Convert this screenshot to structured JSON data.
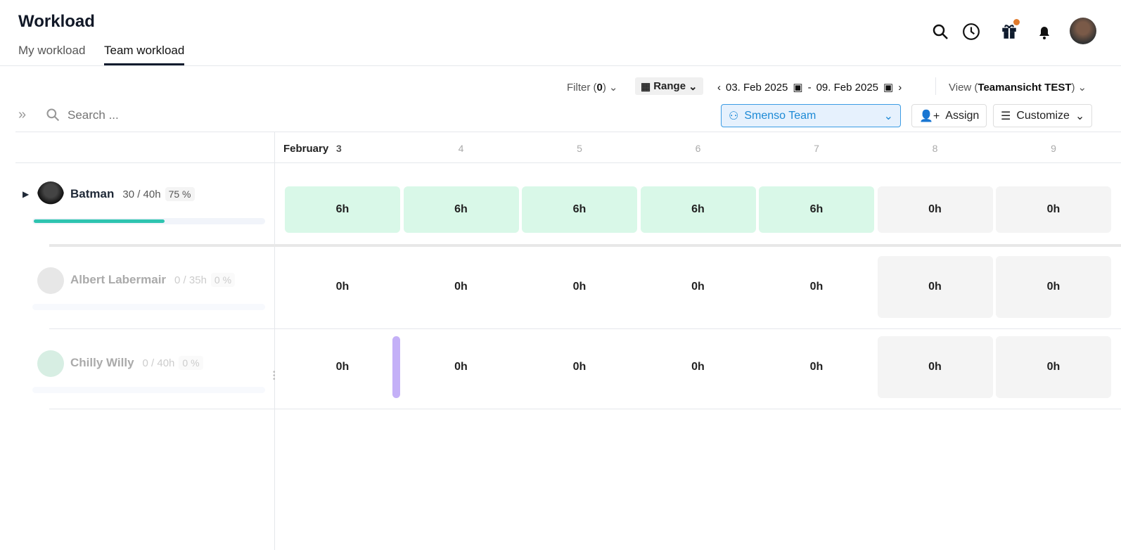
{
  "header": {
    "title": "Workload",
    "tabs": [
      {
        "label": "My workload"
      },
      {
        "label": "Team workload",
        "active": true
      }
    ]
  },
  "toolbar": {
    "filter_label": "Filter (",
    "filter_count": "0",
    "filter_close": ")",
    "range_label": "Range",
    "date_from": "03. Feb 2025",
    "date_sep": "-",
    "date_to": "09. Feb 2025",
    "view_label": "View (",
    "view_name": "Teamansicht TEST",
    "view_close": ")",
    "search_placeholder": "Search ...",
    "team_label": "Smenso Team",
    "assign_label": "Assign",
    "customize_label": "Customize"
  },
  "colors": {
    "accent": "#1d8ad6",
    "progress": "#2ec4b0",
    "worked": "#d9f8e8",
    "weekend": "#f4f4f4",
    "notification": "#e07a2c",
    "today_marker": "#c4b0f7"
  },
  "calendar": {
    "month": "February",
    "days": [
      "3",
      "4",
      "5",
      "6",
      "7",
      "8",
      "9"
    ],
    "weekend": [
      false,
      false,
      false,
      false,
      false,
      true,
      true
    ]
  },
  "people": [
    {
      "name": "Batman",
      "hours": "30 / 40h",
      "percent": "75 %",
      "progress": 0.75,
      "dimmed": false,
      "expandable": true,
      "days": [
        "6h",
        "6h",
        "6h",
        "6h",
        "6h",
        "0h",
        "0h"
      ]
    },
    {
      "name": "Albert Labermair",
      "hours": "0 / 35h",
      "percent": "0 %",
      "progress": 0,
      "dimmed": true,
      "days": [
        "0h",
        "0h",
        "0h",
        "0h",
        "0h",
        "0h",
        "0h"
      ]
    },
    {
      "name": "Chilly Willy",
      "hours": "0 / 40h",
      "percent": "0 %",
      "progress": 0,
      "dimmed": true,
      "days": [
        "0h",
        "0h",
        "0h",
        "0h",
        "0h",
        "0h",
        "0h"
      ]
    }
  ]
}
